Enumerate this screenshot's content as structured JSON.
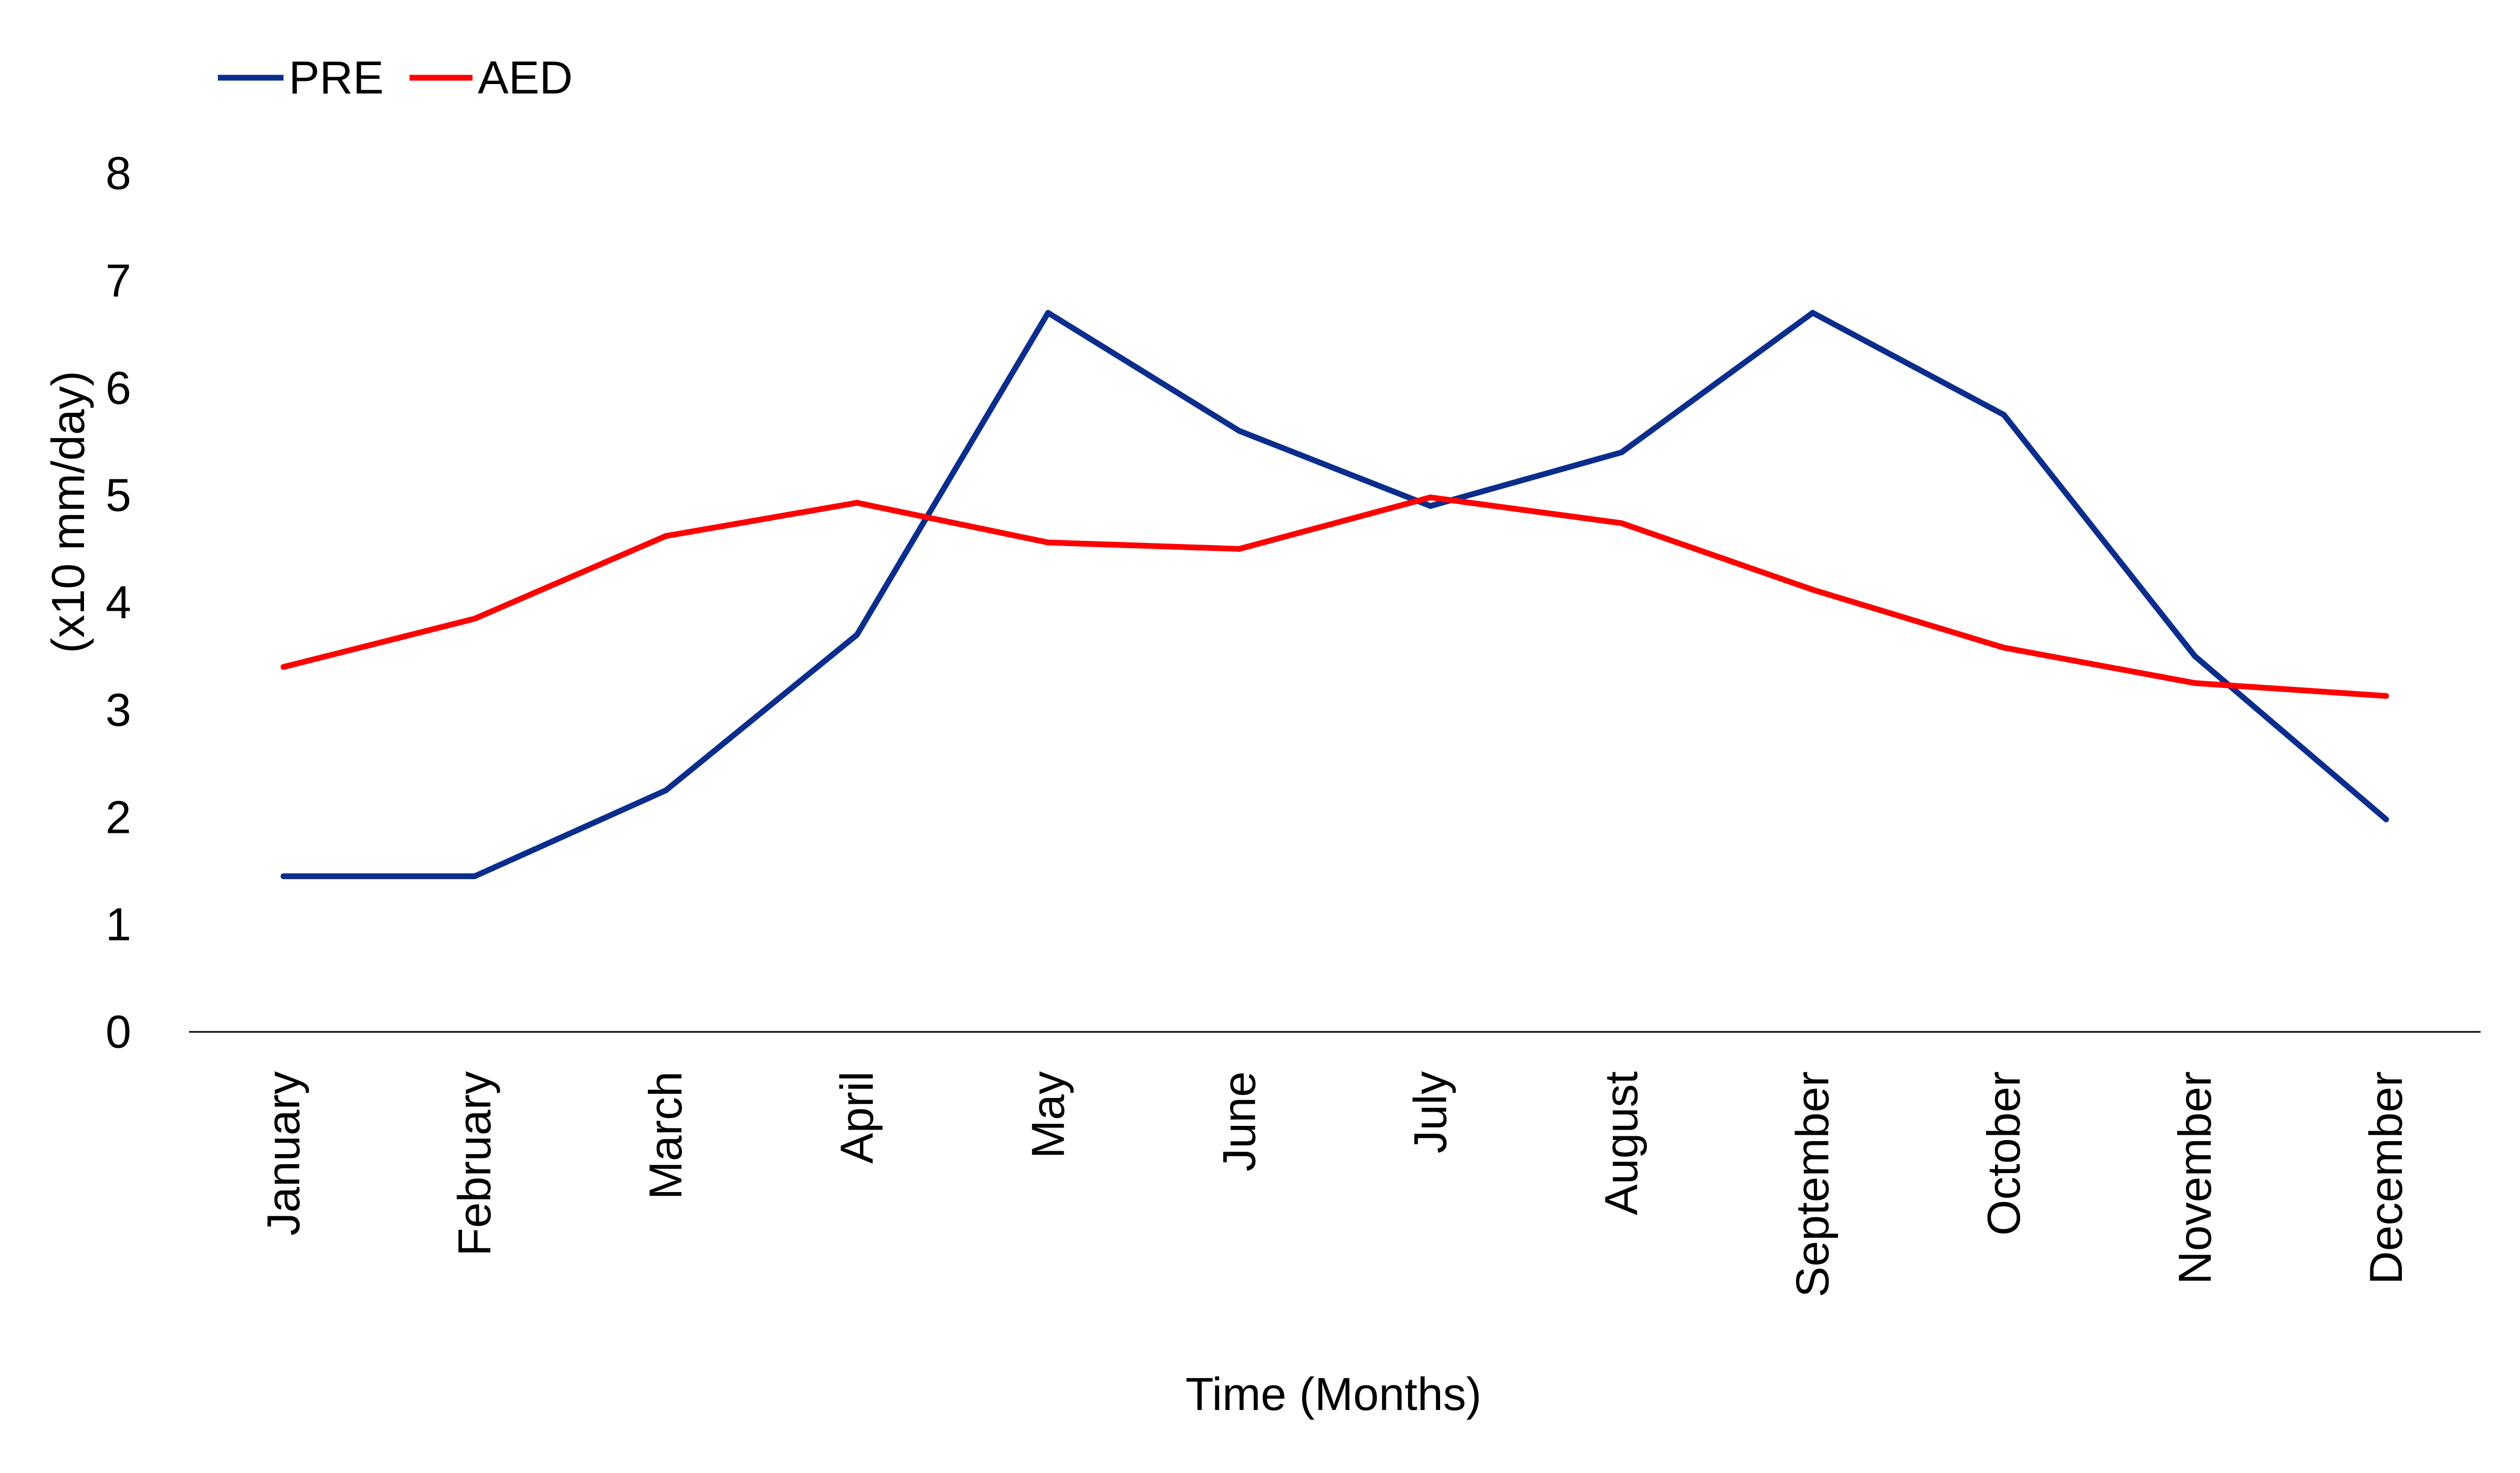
{
  "chart_data": {
    "type": "line",
    "title": "",
    "xlabel": "Time (Months)",
    "ylabel": "(x10 mm/day)",
    "categories": [
      "January",
      "February",
      "March",
      "April",
      "May",
      "June",
      "July",
      "August",
      "September",
      "October",
      "November",
      "December"
    ],
    "series": [
      {
        "name": "PRE",
        "color": "#0b2d8c",
        "values": [
          1.45,
          1.45,
          2.25,
          3.7,
          6.7,
          5.6,
          4.9,
          5.4,
          6.7,
          5.75,
          3.5,
          1.98
        ]
      },
      {
        "name": "AED",
        "color": "#ff0000",
        "values": [
          3.4,
          3.85,
          4.62,
          4.93,
          4.56,
          4.5,
          4.98,
          4.74,
          4.12,
          3.58,
          3.25,
          3.13
        ]
      }
    ],
    "ylim": [
      0,
      8
    ],
    "yticks": [
      "0",
      "1",
      "2",
      "3",
      "4",
      "5",
      "6",
      "7",
      "8"
    ],
    "grid": false,
    "legend_position": "top-left"
  }
}
